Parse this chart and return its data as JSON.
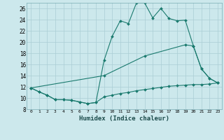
{
  "title": "",
  "xlabel": "Humidex (Indice chaleur)",
  "bg_color": "#cce8ec",
  "line_color": "#1a7a6e",
  "grid_color": "#aacdd4",
  "xlim": [
    -0.5,
    23.5
  ],
  "ylim": [
    8,
    27
  ],
  "xticks": [
    0,
    1,
    2,
    3,
    4,
    5,
    6,
    7,
    8,
    9,
    10,
    11,
    12,
    13,
    14,
    15,
    16,
    17,
    18,
    19,
    20,
    21,
    22,
    23
  ],
  "yticks": [
    8,
    10,
    12,
    14,
    16,
    18,
    20,
    22,
    24,
    26
  ],
  "line1_x": [
    0,
    1,
    2,
    3,
    4,
    5,
    6,
    7,
    8,
    9,
    10,
    11,
    12,
    13,
    14,
    15,
    16,
    17,
    18,
    19,
    20,
    21,
    22,
    23
  ],
  "line1_y": [
    11.8,
    11.1,
    10.5,
    9.7,
    9.7,
    9.6,
    9.3,
    9.0,
    9.2,
    16.7,
    21.0,
    23.8,
    23.3,
    27.0,
    27.0,
    24.3,
    26.0,
    24.2,
    23.8,
    23.9,
    19.3,
    15.2,
    13.5,
    12.7
  ],
  "line2_x": [
    0,
    9,
    14,
    19,
    20,
    21,
    22,
    23
  ],
  "line2_y": [
    11.8,
    14.0,
    17.5,
    19.5,
    19.3,
    15.2,
    13.5,
    12.7
  ],
  "line3_x": [
    0,
    1,
    2,
    3,
    4,
    5,
    6,
    7,
    8,
    9,
    10,
    11,
    12,
    13,
    14,
    15,
    16,
    17,
    18,
    19,
    20,
    21,
    22,
    23
  ],
  "line3_y": [
    11.8,
    11.1,
    10.5,
    9.7,
    9.7,
    9.6,
    9.3,
    9.0,
    9.2,
    10.2,
    10.5,
    10.8,
    11.0,
    11.3,
    11.5,
    11.7,
    11.9,
    12.1,
    12.2,
    12.3,
    12.4,
    12.4,
    12.5,
    12.7
  ]
}
